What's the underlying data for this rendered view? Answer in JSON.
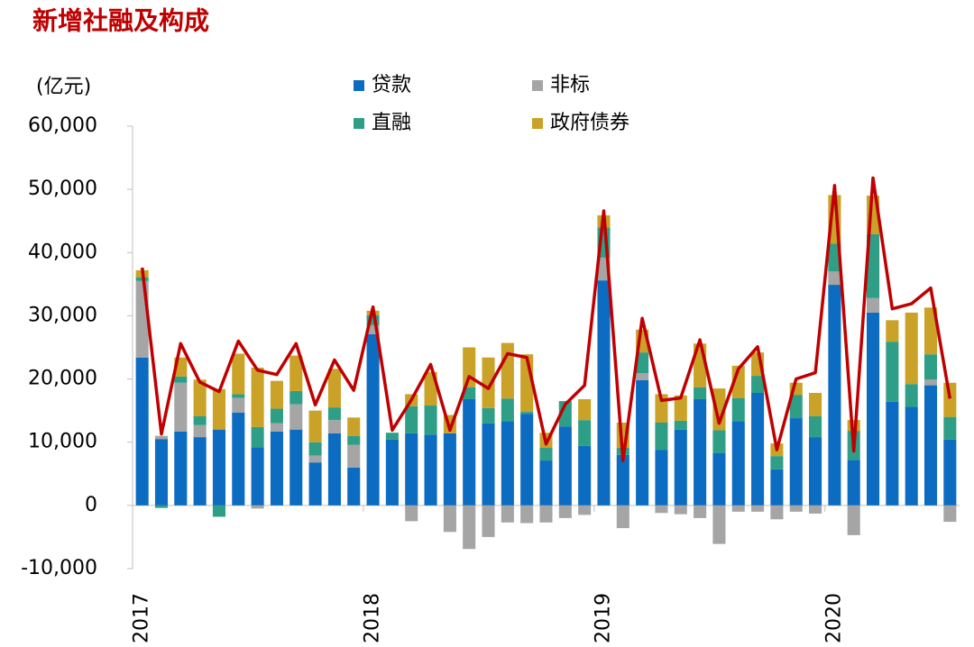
{
  "chart_data": {
    "type": "stacked_bar_line",
    "title": "新增社融及构成",
    "ylabel": "(亿元)",
    "categories": [
      "2017",
      null,
      null,
      null,
      null,
      null,
      null,
      null,
      null,
      null,
      null,
      null,
      "2018",
      null,
      null,
      null,
      null,
      null,
      null,
      null,
      null,
      null,
      null,
      null,
      "2019",
      null,
      null,
      null,
      null,
      null,
      null,
      null,
      null,
      null,
      null,
      null,
      "2020",
      null,
      null,
      null,
      null,
      null,
      null
    ],
    "series": [
      {
        "name": "贷款",
        "color": "#0b6cc2",
        "values": [
          23400.0,
          10500.0,
          11700.0,
          10800.0,
          12000.0,
          14700.0,
          9200.0,
          11700.0,
          12000.0,
          6800.0,
          11400.0,
          6000.0,
          27100.0,
          10400.0,
          11400.0,
          11200.0,
          11400.0,
          16800.0,
          13000.0,
          13300.0,
          14500.0,
          7100.0,
          12500.0,
          9400.0,
          35600.0,
          8000.0,
          19800.0,
          8800.0,
          12000.0,
          16800.0,
          8300.0,
          13300.0,
          17800.0,
          5700.0,
          13800.0,
          10800.0,
          34900.0,
          7200.0,
          30500.0,
          16400.0,
          15600.0,
          19000.0,
          10400.0
        ]
      },
      {
        "name": "非标",
        "color": "#a5a5a5",
        "values": [
          12100.0,
          500.0,
          7700.0,
          1900.0,
          0,
          2300.0,
          -500.0,
          1300.0,
          4000.0,
          1100.0,
          2100.0,
          3600.0,
          1400.0,
          0,
          -2500.0,
          0,
          -4200.0,
          -6900.0,
          -5000.0,
          -2700.0,
          -2800.0,
          -2700.0,
          -2000.0,
          -1500.0,
          3600.0,
          -3600.0,
          1100.0,
          -1200.0,
          -1400.0,
          -2000.0,
          -6100.0,
          -1000.0,
          -1000.0,
          -2200.0,
          -1000.0,
          -1300.0,
          2100.0,
          -4700.0,
          2300.0,
          0,
          0,
          900.0,
          -2600.0
        ]
      },
      {
        "name": "直融",
        "color": "#2e9f86",
        "values": [
          600.0,
          -400.0,
          1000.0,
          1400.0,
          -1800.0,
          600.0,
          3200.0,
          2300.0,
          2100.0,
          2100.0,
          2000.0,
          1400.0,
          1600.0,
          1100.0,
          4300.0,
          4600.0,
          0,
          1900.0,
          2400.0,
          3600.0,
          300.0,
          2000.0,
          4000.0,
          4100.0,
          4800.0,
          1100.0,
          3300.0,
          4300.0,
          1400.0,
          1900.0,
          3600.0,
          3700.0,
          2700.0,
          2100.0,
          3700.0,
          3300.0,
          4400.0,
          4600.0,
          10100.0,
          9500.0,
          3600.0,
          4000.0,
          3600.0
        ]
      },
      {
        "name": "政府债券",
        "color": "#c9a227",
        "values": [
          1100.0,
          0,
          3000.0,
          5800.0,
          6400.0,
          6400.0,
          9400.0,
          4400.0,
          5600.0,
          5000.0,
          6100.0,
          2900.0,
          700.0,
          0,
          1900.0,
          5300.0,
          2900.0,
          6300.0,
          8000.0,
          8800.0,
          9100.0,
          2400.0,
          0,
          3300.0,
          1900.0,
          4000.0,
          3600.0,
          4500.0,
          4000.0,
          6900.0,
          6600.0,
          5100.0,
          3700.0,
          2000.0,
          1900.0,
          3700.0,
          7700.0,
          1700.0,
          6100.0,
          3400.0,
          11300.0,
          7400.0,
          5400.0
        ]
      }
    ],
    "line_color": "#c00000",
    "line_values": [
      37600.0,
      11300.0,
      25600.0,
      19500.0,
      18000.0,
      26000.0,
      21400.0,
      20700.0,
      25600.0,
      15900.0,
      23000.0,
      18200.0,
      31400.0,
      11900.0,
      16700.0,
      22300.0,
      11900.0,
      20400.0,
      18500.0,
      24000.0,
      23400.0,
      9700.0,
      16000.0,
      19000.0,
      46600.0,
      7100.0,
      29600.0,
      16600.0,
      17000.0,
      26200.0,
      13000.0,
      21600.0,
      25100.0,
      8800.0,
      20000.0,
      21000.0,
      50600.0,
      8600.0,
      51800.0,
      31100.0,
      31900.0,
      34400.0,
      16900.0
    ],
    "ylim": [
      -10000,
      60000
    ],
    "yticks": [
      {
        "value": -10000,
        "label": "-10,000"
      },
      0,
      {
        "value": 10000,
        "label": "10,000"
      },
      {
        "value": 20000,
        "label": "20,000"
      },
      {
        "value": 30000,
        "label": "30,000"
      },
      {
        "value": 40000,
        "label": "40,000"
      },
      {
        "value": 50000,
        "label": "50,000"
      },
      {
        "value": 60000,
        "label": "60,000"
      }
    ]
  }
}
